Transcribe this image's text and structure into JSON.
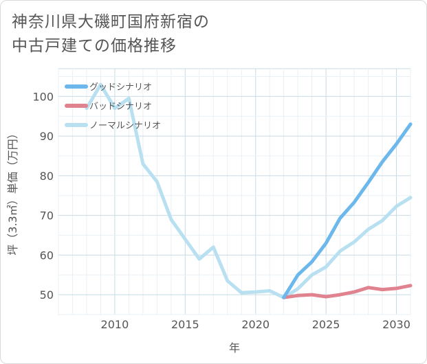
{
  "title_lines": [
    "神奈川県大磯町国府新宿の",
    "中古戸建ての価格推移"
  ],
  "chart_data": {
    "type": "line",
    "title": "神奈川県大磯町国府新宿の中古戸建ての価格推移",
    "xlabel": "年",
    "ylabel": "坪（3.3㎡）単価（万円）",
    "xlim": [
      2006,
      2031
    ],
    "ylim": [
      45,
      107
    ],
    "x_ticks": [
      2010,
      2015,
      2020,
      2025,
      2030
    ],
    "y_ticks": [
      50,
      60,
      70,
      80,
      90,
      100
    ],
    "legend_position": "top-left",
    "series": [
      {
        "name": "グッドシナリオ",
        "color": "#6cb8ec",
        "points": [
          [
            2022,
            49.3
          ],
          [
            2023,
            55.0
          ],
          [
            2024,
            58.3
          ],
          [
            2025,
            63.0
          ],
          [
            2026,
            69.3
          ],
          [
            2027,
            73.3
          ],
          [
            2028,
            78.3
          ],
          [
            2029,
            83.5
          ],
          [
            2030,
            88.0
          ],
          [
            2031,
            93.0
          ]
        ]
      },
      {
        "name": "バッドシナリオ",
        "color": "#e1828f",
        "points": [
          [
            2022,
            49.3
          ],
          [
            2023,
            49.8
          ],
          [
            2024,
            50.0
          ],
          [
            2025,
            49.5
          ],
          [
            2026,
            50.0
          ],
          [
            2027,
            50.7
          ],
          [
            2028,
            51.8
          ],
          [
            2029,
            51.3
          ],
          [
            2030,
            51.6
          ],
          [
            2031,
            52.3
          ]
        ]
      },
      {
        "name": "ノーマルシナリオ",
        "color": "#b8e0f0",
        "points": [
          [
            2008,
            97.0
          ],
          [
            2009,
            103.0
          ],
          [
            2010,
            97.0
          ],
          [
            2011,
            99.5
          ],
          [
            2012,
            83.0
          ],
          [
            2013,
            78.5
          ],
          [
            2014,
            69.0
          ],
          [
            2015,
            64.0
          ],
          [
            2016,
            59.0
          ],
          [
            2017,
            62.0
          ],
          [
            2018,
            53.5
          ],
          [
            2019,
            50.5
          ],
          [
            2020,
            50.7
          ],
          [
            2021,
            51.0
          ],
          [
            2022,
            49.3
          ],
          [
            2023,
            51.5
          ],
          [
            2024,
            55.0
          ],
          [
            2025,
            57.0
          ],
          [
            2026,
            61.0
          ],
          [
            2027,
            63.3
          ],
          [
            2028,
            66.5
          ],
          [
            2029,
            68.7
          ],
          [
            2030,
            72.3
          ],
          [
            2031,
            74.5
          ]
        ]
      }
    ]
  }
}
